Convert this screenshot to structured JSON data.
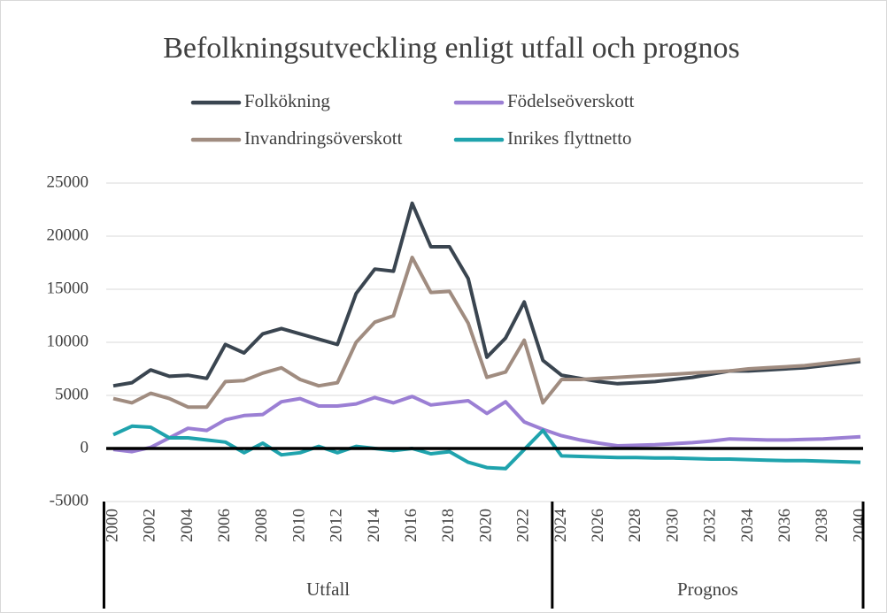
{
  "chart_data": {
    "type": "line",
    "title": "Befolkningsutveckling enligt utfall och prognos",
    "x": [
      2000,
      2001,
      2002,
      2003,
      2004,
      2005,
      2006,
      2007,
      2008,
      2009,
      2010,
      2011,
      2012,
      2013,
      2014,
      2015,
      2016,
      2017,
      2018,
      2019,
      2020,
      2021,
      2022,
      2023,
      2024,
      2025,
      2026,
      2027,
      2028,
      2029,
      2030,
      2031,
      2032,
      2033,
      2034,
      2035,
      2036,
      2037,
      2038,
      2039,
      2040
    ],
    "xlim": [
      2000,
      2040
    ],
    "xticks": [
      2000,
      2002,
      2004,
      2006,
      2008,
      2010,
      2012,
      2014,
      2016,
      2018,
      2020,
      2022,
      2024,
      2026,
      2028,
      2030,
      2032,
      2034,
      2036,
      2038,
      2040
    ],
    "groups": [
      {
        "label": "Utfall",
        "from": 2000,
        "to": 2023
      },
      {
        "label": "Prognos",
        "from": 2024,
        "to": 2040
      }
    ],
    "ylim": [
      -5000,
      25000
    ],
    "yticks": [
      -5000,
      0,
      5000,
      10000,
      15000,
      20000,
      25000
    ],
    "grid": true,
    "series": [
      {
        "name": "Folkökning",
        "color": "#3a4550",
        "values": [
          5900,
          6200,
          7400,
          6800,
          6900,
          6600,
          9800,
          9000,
          10800,
          11300,
          10800,
          10300,
          9800,
          14600,
          16900,
          16700,
          23100,
          19000,
          19000,
          16000,
          8600,
          10400,
          13800,
          8300,
          6900,
          6600,
          6300,
          6100,
          6200,
          6300,
          6500,
          6700,
          7000,
          7300,
          7300,
          7400,
          7500,
          7600,
          7800,
          8000,
          8200
        ]
      },
      {
        "name": "Födelseöverskott",
        "color": "#9b7fd4",
        "values": [
          -100,
          -300,
          100,
          1000,
          1900,
          1700,
          2700,
          3100,
          3200,
          4400,
          4700,
          4000,
          4000,
          4200,
          4800,
          4300,
          4900,
          4100,
          4300,
          4500,
          3300,
          4400,
          2500,
          1800,
          1200,
          800,
          500,
          250,
          300,
          350,
          450,
          550,
          700,
          900,
          850,
          800,
          800,
          850,
          900,
          1000,
          1100
        ]
      },
      {
        "name": "Invandringsöverskott",
        "color": "#a08c80",
        "values": [
          4700,
          4300,
          5200,
          4700,
          3900,
          3900,
          6300,
          6400,
          7100,
          7600,
          6500,
          5900,
          6200,
          10000,
          11900,
          12500,
          18000,
          14700,
          14800,
          11800,
          6700,
          7200,
          10200,
          4300,
          6500,
          6500,
          6600,
          6700,
          6800,
          6900,
          7000,
          7100,
          7200,
          7300,
          7500,
          7600,
          7700,
          7800,
          8000,
          8200,
          8400
        ]
      },
      {
        "name": "Inrikes flyttnetto",
        "color": "#1fa3ad",
        "values": [
          1300,
          2100,
          2000,
          1000,
          1000,
          800,
          600,
          -400,
          500,
          -600,
          -400,
          200,
          -400,
          200,
          0,
          -200,
          0,
          -500,
          -300,
          -1300,
          -1800,
          -1900,
          -100,
          1700,
          -700,
          -750,
          -800,
          -850,
          -850,
          -900,
          -900,
          -950,
          -1000,
          -1000,
          -1050,
          -1100,
          -1150,
          -1150,
          -1200,
          -1250,
          -1300
        ]
      }
    ]
  }
}
